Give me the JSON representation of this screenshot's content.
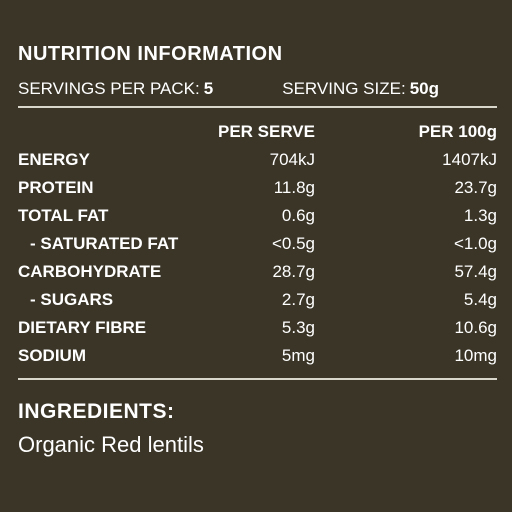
{
  "title": "NUTRITION INFORMATION",
  "servings": {
    "per_pack_label": "SERVINGS PER PACK:",
    "per_pack_value": "5",
    "size_label": "SERVING SIZE:",
    "size_value": "50g"
  },
  "columns": {
    "per_serve": "PER SERVE",
    "per_100g": "PER 100g"
  },
  "rows": [
    {
      "name": "ENERGY",
      "per_serve": "704kJ",
      "per_100g": "1407kJ"
    },
    {
      "name": "PROTEIN",
      "per_serve": "11.8g",
      "per_100g": "23.7g"
    },
    {
      "name": "TOTAL FAT",
      "per_serve": "0.6g",
      "per_100g": "1.3g"
    },
    {
      "name": "- SATURATED FAT",
      "per_serve": "<0.5g",
      "per_100g": "<1.0g"
    },
    {
      "name": "CARBOHYDRATE",
      "per_serve": "28.7g",
      "per_100g": "57.4g"
    },
    {
      "name": "- SUGARS",
      "per_serve": "2.7g",
      "per_100g": "5.4g"
    },
    {
      "name": "DIETARY FIBRE",
      "per_serve": "5.3g",
      "per_100g": "10.6g"
    },
    {
      "name": "SODIUM",
      "per_serve": "5mg",
      "per_100g": "10mg"
    }
  ],
  "ingredients": {
    "title": "INGREDIENTS:",
    "text": "Organic Red lentils"
  }
}
